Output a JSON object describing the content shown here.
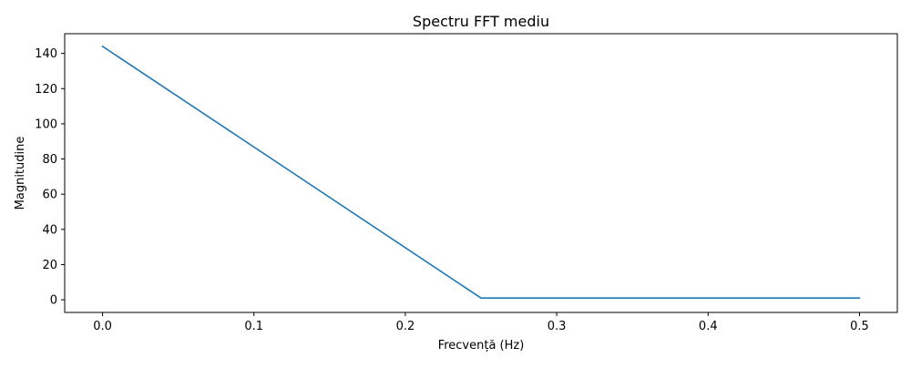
{
  "chart_data": {
    "type": "line",
    "title": "Spectru FFT mediu",
    "xlabel": "Frecvență (Hz)",
    "ylabel": "Magnitudine",
    "xlim": [
      -0.025,
      0.525
    ],
    "ylim": [
      -7.2,
      151.2
    ],
    "xticks": [
      0.0,
      0.1,
      0.2,
      0.3,
      0.4,
      0.5
    ],
    "xtick_labels": [
      "0.0",
      "0.1",
      "0.2",
      "0.3",
      "0.4",
      "0.5"
    ],
    "yticks": [
      0,
      20,
      40,
      60,
      80,
      100,
      120,
      140
    ],
    "ytick_labels": [
      "0",
      "20",
      "40",
      "60",
      "80",
      "100",
      "120",
      "140"
    ],
    "grid": false,
    "legend": "none",
    "series": [
      {
        "color": "#1f77b4",
        "x": [
          0.0,
          0.25,
          0.5
        ],
        "y": [
          144,
          1,
          1
        ]
      }
    ]
  }
}
